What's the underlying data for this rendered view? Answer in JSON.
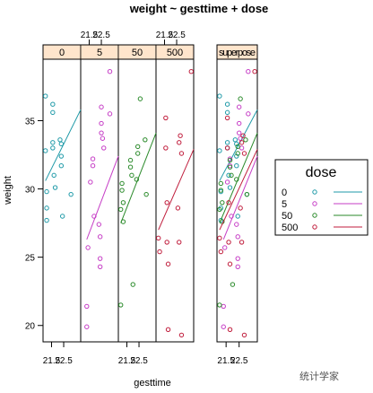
{
  "chart_data": {
    "type": "scatter",
    "title": "weight ~ gesttime + dose",
    "xlabel": "gesttime",
    "ylabel": "weight",
    "xlim": [
      20.8,
      23.9
    ],
    "ylim": [
      18.8,
      39.5
    ],
    "x_ticks": [
      "21.5",
      "22.5"
    ],
    "y_ticks": [
      20,
      25,
      30,
      35
    ],
    "panels": [
      "0",
      "5",
      "50",
      "500",
      "superpose"
    ],
    "legend": {
      "title": "dose",
      "position": "right",
      "entries": [
        "0",
        "5",
        "50",
        "500"
      ]
    },
    "series": [
      {
        "name": "0",
        "color": "#1f9aa8",
        "points": [
          [
            21.0,
            36.8
          ],
          [
            21.0,
            32.8
          ],
          [
            21.1,
            29.8
          ],
          [
            21.1,
            28.6
          ],
          [
            21.1,
            27.7
          ],
          [
            21.6,
            36.2
          ],
          [
            21.6,
            35.6
          ],
          [
            21.6,
            33.4
          ],
          [
            21.6,
            33.0
          ],
          [
            21.7,
            31.0
          ],
          [
            21.8,
            30.1
          ],
          [
            22.2,
            33.6
          ],
          [
            22.3,
            33.3
          ],
          [
            22.3,
            32.4
          ],
          [
            22.3,
            31.7
          ],
          [
            22.4,
            28.0
          ],
          [
            23.1,
            29.6
          ]
        ],
        "fit": [
          [
            21.0,
            30.6
          ],
          [
            23.9,
            35.8
          ]
        ]
      },
      {
        "name": "5",
        "color": "#c63ec6",
        "points": [
          [
            21.3,
            21.4
          ],
          [
            21.3,
            19.9
          ],
          [
            21.4,
            25.7
          ],
          [
            21.6,
            30.5
          ],
          [
            21.8,
            31.7
          ],
          [
            21.8,
            32.2
          ],
          [
            21.9,
            28.0
          ],
          [
            22.3,
            27.4
          ],
          [
            22.4,
            26.5
          ],
          [
            22.4,
            24.9
          ],
          [
            22.4,
            24.3
          ],
          [
            22.5,
            36.0
          ],
          [
            22.5,
            34.8
          ],
          [
            22.5,
            34.1
          ],
          [
            22.6,
            33.7
          ],
          [
            22.7,
            33.0
          ],
          [
            23.2,
            38.6
          ],
          [
            23.2,
            35.5
          ]
        ],
        "fit": [
          [
            21.3,
            26.3
          ],
          [
            23.9,
            32.4
          ]
        ]
      },
      {
        "name": "50",
        "color": "#2a8a2a",
        "points": [
          [
            21.0,
            21.5
          ],
          [
            21.0,
            28.5
          ],
          [
            21.1,
            29.9
          ],
          [
            21.1,
            30.4
          ],
          [
            21.2,
            29.0
          ],
          [
            21.2,
            27.6
          ],
          [
            21.8,
            32.1
          ],
          [
            21.8,
            31.6
          ],
          [
            21.9,
            31.0
          ],
          [
            22.0,
            23.0
          ],
          [
            22.3,
            30.7
          ],
          [
            22.4,
            33.1
          ],
          [
            22.4,
            32.6
          ],
          [
            22.6,
            36.6
          ],
          [
            23.0,
            33.6
          ],
          [
            23.1,
            29.6
          ]
        ],
        "fit": [
          [
            21.0,
            27.5
          ],
          [
            23.9,
            34.1
          ]
        ]
      },
      {
        "name": "500",
        "color": "#c01d3c",
        "points": [
          [
            21.0,
            26.4
          ],
          [
            21.1,
            25.4
          ],
          [
            21.6,
            35.2
          ],
          [
            21.6,
            33.0
          ],
          [
            21.7,
            29.0
          ],
          [
            21.7,
            26.1
          ],
          [
            21.8,
            24.5
          ],
          [
            21.8,
            19.7
          ],
          [
            22.6,
            28.6
          ],
          [
            22.7,
            26.1
          ],
          [
            22.7,
            33.4
          ],
          [
            22.8,
            33.9
          ],
          [
            22.9,
            32.6
          ],
          [
            22.9,
            19.3
          ],
          [
            23.7,
            38.6
          ]
        ],
        "fit": [
          [
            21.0,
            27.0
          ],
          [
            23.9,
            32.9
          ]
        ]
      }
    ]
  },
  "watermark": "统计学家"
}
